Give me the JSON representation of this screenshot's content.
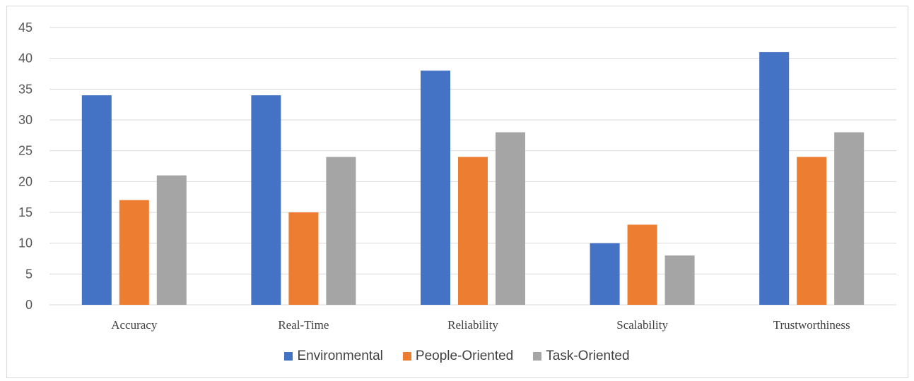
{
  "chart_data": {
    "type": "bar",
    "categories": [
      "Accuracy",
      "Real-Time",
      "Reliability",
      "Scalability",
      "Trustworthiness"
    ],
    "series": [
      {
        "name": "Environmental",
        "values": [
          34,
          34,
          38,
          10,
          41
        ],
        "color": "#4472c4"
      },
      {
        "name": "People-Oriented",
        "values": [
          17,
          15,
          24,
          13,
          24
        ],
        "color": "#ed7d31"
      },
      {
        "name": "Task-Oriented",
        "values": [
          21,
          24,
          28,
          8,
          28
        ],
        "color": "#a5a5a5"
      }
    ],
    "ylim": [
      0,
      45
    ],
    "yticks": [
      0,
      5,
      10,
      15,
      20,
      25,
      30,
      35,
      40,
      45
    ],
    "grid": true,
    "legend_position": "bottom",
    "gridline_color": "#d9d9d9"
  }
}
